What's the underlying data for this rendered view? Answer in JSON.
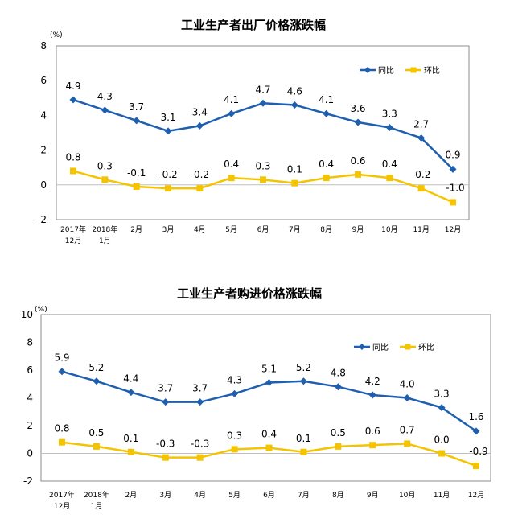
{
  "chart_data": [
    {
      "type": "line",
      "title": "工业生产者出厂价格涨跌幅",
      "unit": "(%)",
      "categories": [
        "2017年 12月",
        "2018年 1月",
        "2月",
        "3月",
        "4月",
        "5月",
        "6月",
        "7月",
        "8月",
        "9月",
        "10月",
        "11月",
        "12月"
      ],
      "category_lines": [
        [
          "2017年",
          "12月"
        ],
        [
          "2018年",
          "1月"
        ],
        [
          "2月"
        ],
        [
          "3月"
        ],
        [
          "4月"
        ],
        [
          "5月"
        ],
        [
          "6月"
        ],
        [
          "7月"
        ],
        [
          "8月"
        ],
        [
          "9月"
        ],
        [
          "10月"
        ],
        [
          "11月"
        ],
        [
          "12月"
        ]
      ],
      "ylim": [
        -2,
        8
      ],
      "yticks": [
        -2,
        0,
        2,
        4,
        6,
        8
      ],
      "legend_position": "top-right",
      "grid": false,
      "series": [
        {
          "name": "同比",
          "color": "#1F5FB0",
          "marker": "diamond",
          "values": [
            4.9,
            4.3,
            3.7,
            3.1,
            3.4,
            4.1,
            4.7,
            4.6,
            4.1,
            3.6,
            3.3,
            2.7,
            0.9
          ],
          "labels": [
            "4.9",
            "4.3",
            "3.7",
            "3.1",
            "3.4",
            "4.1",
            "4.7",
            "4.6",
            "4.1",
            "3.6",
            "3.3",
            "2.7",
            "0.9"
          ]
        },
        {
          "name": "环比",
          "color": "#F4C400",
          "marker": "square",
          "values": [
            0.8,
            0.3,
            -0.1,
            -0.2,
            -0.2,
            0.4,
            0.3,
            0.1,
            0.4,
            0.6,
            0.4,
            -0.2,
            -1.0
          ],
          "labels": [
            "0.8",
            "0.3",
            "-0.1",
            "-0.2",
            "-0.2",
            "0.4",
            "0.3",
            "0.1",
            "0.4",
            "0.6",
            "0.4",
            "-0.2",
            "-1.0"
          ]
        }
      ]
    },
    {
      "type": "line",
      "title": "工业生产者购进价格涨跌幅",
      "unit": "(%)",
      "categories": [
        "2017年 12月",
        "2018年 1月",
        "2月",
        "3月",
        "4月",
        "5月",
        "6月",
        "7月",
        "8月",
        "9月",
        "10月",
        "11月",
        "12月"
      ],
      "category_lines": [
        [
          "2017年",
          "12月"
        ],
        [
          "2018年",
          "1月"
        ],
        [
          "2月"
        ],
        [
          "3月"
        ],
        [
          "4月"
        ],
        [
          "5月"
        ],
        [
          "6月"
        ],
        [
          "7月"
        ],
        [
          "8月"
        ],
        [
          "9月"
        ],
        [
          "10月"
        ],
        [
          "11月"
        ],
        [
          "12月"
        ]
      ],
      "ylim": [
        -2,
        10
      ],
      "yticks": [
        -2,
        0,
        2,
        4,
        6,
        8,
        10
      ],
      "legend_position": "top-right",
      "grid": false,
      "series": [
        {
          "name": "同比",
          "color": "#1F5FB0",
          "marker": "diamond",
          "values": [
            5.9,
            5.2,
            4.4,
            3.7,
            3.7,
            4.3,
            5.1,
            5.2,
            4.8,
            4.2,
            4.0,
            3.3,
            1.6
          ],
          "labels": [
            "5.9",
            "5.2",
            "4.4",
            "3.7",
            "3.7",
            "4.3",
            "5.1",
            "5.2",
            "4.8",
            "4.2",
            "4.0",
            "3.3",
            "1.6"
          ]
        },
        {
          "name": "环比",
          "color": "#F4C400",
          "marker": "square",
          "values": [
            0.8,
            0.5,
            0.1,
            -0.3,
            -0.3,
            0.3,
            0.4,
            0.1,
            0.5,
            0.6,
            0.7,
            0.0,
            -0.9
          ],
          "labels": [
            "0.8",
            "0.5",
            "0.1",
            "-0.3",
            "-0.3",
            "0.3",
            "0.4",
            "0.1",
            "0.5",
            "0.6",
            "0.7",
            "0.0",
            "-0.9"
          ]
        }
      ]
    }
  ]
}
